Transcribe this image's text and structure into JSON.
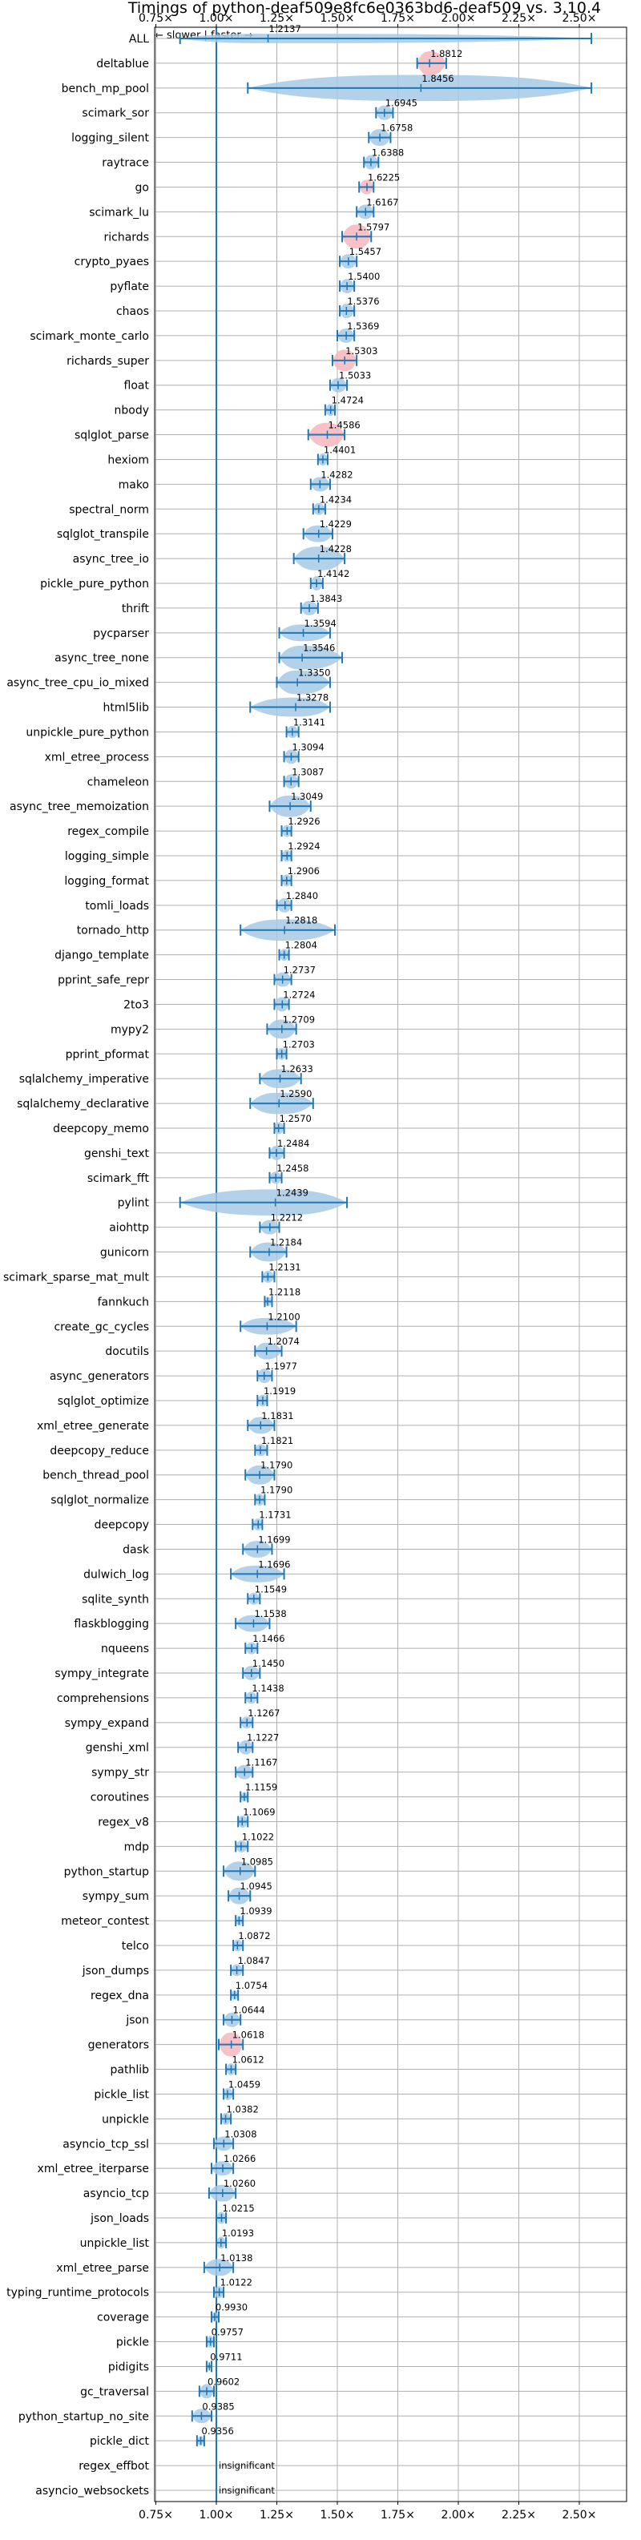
{
  "chart_data": {
    "type": "violin",
    "title": "Timings of python-deaf509e8fc6e0363bd6-deaf509 vs. 3.10.4",
    "direction_label": "← slower | faster →",
    "xlim": [
      0.75,
      2.6
    ],
    "xticks": [
      0.75,
      1.0,
      1.25,
      1.5,
      1.75,
      2.0,
      2.25,
      2.5
    ],
    "xtick_labels": [
      "0.75×",
      "1.00×",
      "1.25×",
      "1.50×",
      "1.75×",
      "2.00×",
      "2.25×",
      "2.50×"
    ],
    "reference_line": 1.0,
    "grid": true,
    "colors": {
      "normal": "#a7c9e6",
      "highlight": "#f4b6bd",
      "line": "#1f77b4"
    },
    "benchmarks": [
      {
        "name": "ALL",
        "value": 1.2137,
        "label": "1.2137",
        "lo": 0.85,
        "hi": 2.55,
        "w": 0.4,
        "highlight": false
      },
      {
        "name": "deltablue",
        "value": 1.8812,
        "label": "1.8812",
        "lo": 1.83,
        "hi": 1.95,
        "w": 1.0,
        "highlight": true
      },
      {
        "name": "bench_mp_pool",
        "value": 1.8456,
        "label": "1.8456",
        "lo": 1.13,
        "hi": 2.55,
        "w": 1.1,
        "highlight": false
      },
      {
        "name": "scimark_sor",
        "value": 1.6945,
        "label": "1.6945",
        "lo": 1.66,
        "hi": 1.73,
        "w": 0.6,
        "highlight": false
      },
      {
        "name": "logging_silent",
        "value": 1.6758,
        "label": "1.6758",
        "lo": 1.63,
        "hi": 1.72,
        "w": 0.7,
        "highlight": false
      },
      {
        "name": "raytrace",
        "value": 1.6388,
        "label": "1.6388",
        "lo": 1.61,
        "hi": 1.67,
        "w": 0.6,
        "highlight": false
      },
      {
        "name": "go",
        "value": 1.6225,
        "label": "1.6225",
        "lo": 1.59,
        "hi": 1.65,
        "w": 0.6,
        "highlight": true
      },
      {
        "name": "scimark_lu",
        "value": 1.6167,
        "label": "1.6167",
        "lo": 1.58,
        "hi": 1.65,
        "w": 0.6,
        "highlight": false
      },
      {
        "name": "richards",
        "value": 1.5797,
        "label": "1.5797",
        "lo": 1.52,
        "hi": 1.64,
        "w": 1.0,
        "highlight": true
      },
      {
        "name": "crypto_pyaes",
        "value": 1.5457,
        "label": "1.5457",
        "lo": 1.51,
        "hi": 1.58,
        "w": 0.6,
        "highlight": false
      },
      {
        "name": "pyflate",
        "value": 1.54,
        "label": "1.5400",
        "lo": 1.51,
        "hi": 1.57,
        "w": 0.6,
        "highlight": false
      },
      {
        "name": "chaos",
        "value": 1.5376,
        "label": "1.5376",
        "lo": 1.51,
        "hi": 1.57,
        "w": 0.6,
        "highlight": false
      },
      {
        "name": "scimark_monte_carlo",
        "value": 1.5369,
        "label": "1.5369",
        "lo": 1.5,
        "hi": 1.57,
        "w": 0.6,
        "highlight": false
      },
      {
        "name": "richards_super",
        "value": 1.5303,
        "label": "1.5303",
        "lo": 1.48,
        "hi": 1.58,
        "w": 0.9,
        "highlight": true
      },
      {
        "name": "float",
        "value": 1.5033,
        "label": "1.5033",
        "lo": 1.47,
        "hi": 1.54,
        "w": 0.6,
        "highlight": false
      },
      {
        "name": "nbody",
        "value": 1.4724,
        "label": "1.4724",
        "lo": 1.45,
        "hi": 1.49,
        "w": 0.5,
        "highlight": false
      },
      {
        "name": "sqlglot_parse",
        "value": 1.4586,
        "label": "1.4586",
        "lo": 1.38,
        "hi": 1.53,
        "w": 1.0,
        "highlight": true
      },
      {
        "name": "hexiom",
        "value": 1.4401,
        "label": "1.4401",
        "lo": 1.42,
        "hi": 1.46,
        "w": 0.5,
        "highlight": false
      },
      {
        "name": "mako",
        "value": 1.4282,
        "label": "1.4282",
        "lo": 1.39,
        "hi": 1.47,
        "w": 0.6,
        "highlight": false
      },
      {
        "name": "spectral_norm",
        "value": 1.4234,
        "label": "1.4234",
        "lo": 1.4,
        "hi": 1.45,
        "w": 0.5,
        "highlight": false
      },
      {
        "name": "sqlglot_transpile",
        "value": 1.4229,
        "label": "1.4229",
        "lo": 1.36,
        "hi": 1.48,
        "w": 0.7,
        "highlight": false
      },
      {
        "name": "async_tree_io",
        "value": 1.4228,
        "label": "1.4228",
        "lo": 1.32,
        "hi": 1.53,
        "w": 1.0,
        "highlight": false
      },
      {
        "name": "pickle_pure_python",
        "value": 1.4142,
        "label": "1.4142",
        "lo": 1.39,
        "hi": 1.44,
        "w": 0.6,
        "highlight": false
      },
      {
        "name": "thrift",
        "value": 1.3843,
        "label": "1.3843",
        "lo": 1.35,
        "hi": 1.42,
        "w": 0.6,
        "highlight": false
      },
      {
        "name": "pycparser",
        "value": 1.3594,
        "label": "1.3594",
        "lo": 1.26,
        "hi": 1.47,
        "w": 0.7,
        "highlight": false
      },
      {
        "name": "async_tree_none",
        "value": 1.3546,
        "label": "1.3546",
        "lo": 1.26,
        "hi": 1.52,
        "w": 1.0,
        "highlight": false
      },
      {
        "name": "async_tree_cpu_io_mixed",
        "value": 1.335,
        "label": "1.3350",
        "lo": 1.25,
        "hi": 1.47,
        "w": 1.0,
        "highlight": false
      },
      {
        "name": "html5lib",
        "value": 1.3278,
        "label": "1.3278",
        "lo": 1.14,
        "hi": 1.47,
        "w": 0.8,
        "highlight": false
      },
      {
        "name": "unpickle_pure_python",
        "value": 1.3141,
        "label": "1.3141",
        "lo": 1.29,
        "hi": 1.34,
        "w": 0.5,
        "highlight": false
      },
      {
        "name": "xml_etree_process",
        "value": 1.3094,
        "label": "1.3094",
        "lo": 1.28,
        "hi": 1.34,
        "w": 0.6,
        "highlight": false
      },
      {
        "name": "chameleon",
        "value": 1.3087,
        "label": "1.3087",
        "lo": 1.28,
        "hi": 1.34,
        "w": 0.6,
        "highlight": false
      },
      {
        "name": "async_tree_memoization",
        "value": 1.3049,
        "label": "1.3049",
        "lo": 1.22,
        "hi": 1.39,
        "w": 0.9,
        "highlight": false
      },
      {
        "name": "regex_compile",
        "value": 1.2926,
        "label": "1.2926",
        "lo": 1.27,
        "hi": 1.31,
        "w": 0.5,
        "highlight": false
      },
      {
        "name": "logging_simple",
        "value": 1.2924,
        "label": "1.2924",
        "lo": 1.27,
        "hi": 1.31,
        "w": 0.5,
        "highlight": false
      },
      {
        "name": "logging_format",
        "value": 1.2906,
        "label": "1.2906",
        "lo": 1.27,
        "hi": 1.31,
        "w": 0.5,
        "highlight": false
      },
      {
        "name": "tomli_loads",
        "value": 1.284,
        "label": "1.2840",
        "lo": 1.25,
        "hi": 1.31,
        "w": 0.6,
        "highlight": false
      },
      {
        "name": "tornado_http",
        "value": 1.2818,
        "label": "1.2818",
        "lo": 1.1,
        "hi": 1.49,
        "w": 0.9,
        "highlight": false
      },
      {
        "name": "django_template",
        "value": 1.2804,
        "label": "1.2804",
        "lo": 1.26,
        "hi": 1.3,
        "w": 0.5,
        "highlight": false
      },
      {
        "name": "pprint_safe_repr",
        "value": 1.2737,
        "label": "1.2737",
        "lo": 1.24,
        "hi": 1.31,
        "w": 0.6,
        "highlight": false
      },
      {
        "name": "2to3",
        "value": 1.2724,
        "label": "1.2724",
        "lo": 1.24,
        "hi": 1.3,
        "w": 0.6,
        "highlight": false
      },
      {
        "name": "mypy2",
        "value": 1.2709,
        "label": "1.2709",
        "lo": 1.21,
        "hi": 1.33,
        "w": 0.8,
        "highlight": false
      },
      {
        "name": "pprint_pformat",
        "value": 1.2703,
        "label": "1.2703",
        "lo": 1.25,
        "hi": 1.29,
        "w": 0.5,
        "highlight": false
      },
      {
        "name": "sqlalchemy_imperative",
        "value": 1.2633,
        "label": "1.2633",
        "lo": 1.18,
        "hi": 1.35,
        "w": 0.8,
        "highlight": false
      },
      {
        "name": "sqlalchemy_declarative",
        "value": 1.259,
        "label": "1.2590",
        "lo": 1.14,
        "hi": 1.4,
        "w": 0.9,
        "highlight": false
      },
      {
        "name": "deepcopy_memo",
        "value": 1.257,
        "label": "1.2570",
        "lo": 1.24,
        "hi": 1.28,
        "w": 0.5,
        "highlight": false
      },
      {
        "name": "genshi_text",
        "value": 1.2484,
        "label": "1.2484",
        "lo": 1.22,
        "hi": 1.28,
        "w": 0.6,
        "highlight": false
      },
      {
        "name": "scimark_fft",
        "value": 1.2458,
        "label": "1.2458",
        "lo": 1.22,
        "hi": 1.27,
        "w": 0.5,
        "highlight": false
      },
      {
        "name": "pylint",
        "value": 1.2439,
        "label": "1.2439",
        "lo": 0.85,
        "hi": 1.54,
        "w": 1.1,
        "highlight": false
      },
      {
        "name": "aiohttp",
        "value": 1.2212,
        "label": "1.2212",
        "lo": 1.18,
        "hi": 1.26,
        "w": 0.6,
        "highlight": false
      },
      {
        "name": "gunicorn",
        "value": 1.2184,
        "label": "1.2184",
        "lo": 1.14,
        "hi": 1.29,
        "w": 0.8,
        "highlight": false
      },
      {
        "name": "scimark_sparse_mat_mult",
        "value": 1.2131,
        "label": "1.2131",
        "lo": 1.19,
        "hi": 1.24,
        "w": 0.5,
        "highlight": false
      },
      {
        "name": "fannkuch",
        "value": 1.2118,
        "label": "1.2118",
        "lo": 1.2,
        "hi": 1.23,
        "w": 0.4,
        "highlight": false
      },
      {
        "name": "create_gc_cycles",
        "value": 1.21,
        "label": "1.2100",
        "lo": 1.1,
        "hi": 1.33,
        "w": 0.7,
        "highlight": false
      },
      {
        "name": "docutils",
        "value": 1.2074,
        "label": "1.2074",
        "lo": 1.16,
        "hi": 1.27,
        "w": 0.7,
        "highlight": false
      },
      {
        "name": "async_generators",
        "value": 1.1977,
        "label": "1.1977",
        "lo": 1.17,
        "hi": 1.23,
        "w": 0.6,
        "highlight": false
      },
      {
        "name": "sqlglot_optimize",
        "value": 1.1919,
        "label": "1.1919",
        "lo": 1.17,
        "hi": 1.21,
        "w": 0.5,
        "highlight": false
      },
      {
        "name": "xml_etree_generate",
        "value": 1.1831,
        "label": "1.1831",
        "lo": 1.13,
        "hi": 1.24,
        "w": 0.7,
        "highlight": false
      },
      {
        "name": "deepcopy_reduce",
        "value": 1.1821,
        "label": "1.1821",
        "lo": 1.16,
        "hi": 1.21,
        "w": 0.5,
        "highlight": false
      },
      {
        "name": "bench_thread_pool",
        "value": 1.179,
        "label": "1.1790",
        "lo": 1.12,
        "hi": 1.24,
        "w": 0.8,
        "highlight": false
      },
      {
        "name": "sqlglot_normalize",
        "value": 1.179,
        "label": "1.1790",
        "lo": 1.16,
        "hi": 1.2,
        "w": 0.5,
        "highlight": false
      },
      {
        "name": "deepcopy",
        "value": 1.1731,
        "label": "1.1731",
        "lo": 1.15,
        "hi": 1.19,
        "w": 0.5,
        "highlight": false
      },
      {
        "name": "dask",
        "value": 1.1699,
        "label": "1.1699",
        "lo": 1.11,
        "hi": 1.23,
        "w": 0.7,
        "highlight": false
      },
      {
        "name": "dulwich_log",
        "value": 1.1696,
        "label": "1.1696",
        "lo": 1.06,
        "hi": 1.28,
        "w": 0.7,
        "highlight": false
      },
      {
        "name": "sqlite_synth",
        "value": 1.1549,
        "label": "1.1549",
        "lo": 1.13,
        "hi": 1.18,
        "w": 0.5,
        "highlight": false
      },
      {
        "name": "flaskblogging",
        "value": 1.1538,
        "label": "1.1538",
        "lo": 1.08,
        "hi": 1.22,
        "w": 0.7,
        "highlight": false
      },
      {
        "name": "nqueens",
        "value": 1.1466,
        "label": "1.1466",
        "lo": 1.12,
        "hi": 1.17,
        "w": 0.5,
        "highlight": false
      },
      {
        "name": "sympy_integrate",
        "value": 1.145,
        "label": "1.1450",
        "lo": 1.11,
        "hi": 1.18,
        "w": 0.6,
        "highlight": false
      },
      {
        "name": "comprehensions",
        "value": 1.1438,
        "label": "1.1438",
        "lo": 1.12,
        "hi": 1.17,
        "w": 0.5,
        "highlight": false
      },
      {
        "name": "sympy_expand",
        "value": 1.1267,
        "label": "1.1267",
        "lo": 1.1,
        "hi": 1.15,
        "w": 0.5,
        "highlight": false
      },
      {
        "name": "genshi_xml",
        "value": 1.1227,
        "label": "1.1227",
        "lo": 1.09,
        "hi": 1.15,
        "w": 0.6,
        "highlight": false
      },
      {
        "name": "sympy_str",
        "value": 1.1167,
        "label": "1.1167",
        "lo": 1.08,
        "hi": 1.15,
        "w": 0.6,
        "highlight": false
      },
      {
        "name": "coroutines",
        "value": 1.1159,
        "label": "1.1159",
        "lo": 1.1,
        "hi": 1.13,
        "w": 0.4,
        "highlight": false
      },
      {
        "name": "regex_v8",
        "value": 1.1069,
        "label": "1.1069",
        "lo": 1.09,
        "hi": 1.13,
        "w": 0.5,
        "highlight": false
      },
      {
        "name": "mdp",
        "value": 1.1022,
        "label": "1.1022",
        "lo": 1.08,
        "hi": 1.13,
        "w": 0.5,
        "highlight": false
      },
      {
        "name": "python_startup",
        "value": 1.0985,
        "label": "1.0985",
        "lo": 1.03,
        "hi": 1.16,
        "w": 0.8,
        "highlight": false
      },
      {
        "name": "sympy_sum",
        "value": 1.0945,
        "label": "1.0945",
        "lo": 1.05,
        "hi": 1.14,
        "w": 0.7,
        "highlight": false
      },
      {
        "name": "meteor_contest",
        "value": 1.0939,
        "label": "1.0939",
        "lo": 1.08,
        "hi": 1.11,
        "w": 0.4,
        "highlight": false
      },
      {
        "name": "telco",
        "value": 1.0872,
        "label": "1.0872",
        "lo": 1.07,
        "hi": 1.11,
        "w": 0.5,
        "highlight": false
      },
      {
        "name": "json_dumps",
        "value": 1.0847,
        "label": "1.0847",
        "lo": 1.06,
        "hi": 1.11,
        "w": 0.5,
        "highlight": false
      },
      {
        "name": "regex_dna",
        "value": 1.0754,
        "label": "1.0754",
        "lo": 1.06,
        "hi": 1.09,
        "w": 0.4,
        "highlight": false
      },
      {
        "name": "json",
        "value": 1.0644,
        "label": "1.0644",
        "lo": 1.03,
        "hi": 1.1,
        "w": 0.6,
        "highlight": false
      },
      {
        "name": "generators",
        "value": 1.0618,
        "label": "1.0618",
        "lo": 1.01,
        "hi": 1.11,
        "w": 1.0,
        "highlight": true
      },
      {
        "name": "pathlib",
        "value": 1.0612,
        "label": "1.0612",
        "lo": 1.04,
        "hi": 1.08,
        "w": 0.5,
        "highlight": false
      },
      {
        "name": "pickle_list",
        "value": 1.0459,
        "label": "1.0459",
        "lo": 1.03,
        "hi": 1.07,
        "w": 0.5,
        "highlight": false
      },
      {
        "name": "unpickle",
        "value": 1.0382,
        "label": "1.0382",
        "lo": 1.02,
        "hi": 1.06,
        "w": 0.5,
        "highlight": false
      },
      {
        "name": "asyncio_tcp_ssl",
        "value": 1.0308,
        "label": "1.0308",
        "lo": 0.99,
        "hi": 1.07,
        "w": 0.6,
        "highlight": false
      },
      {
        "name": "xml_etree_iterparse",
        "value": 1.0266,
        "label": "1.0266",
        "lo": 0.98,
        "hi": 1.07,
        "w": 0.6,
        "highlight": false
      },
      {
        "name": "asyncio_tcp",
        "value": 1.026,
        "label": "1.0260",
        "lo": 0.97,
        "hi": 1.08,
        "w": 0.7,
        "highlight": false
      },
      {
        "name": "json_loads",
        "value": 1.0215,
        "label": "1.0215",
        "lo": 1.0,
        "hi": 1.04,
        "w": 0.5,
        "highlight": false
      },
      {
        "name": "unpickle_list",
        "value": 1.0193,
        "label": "1.0193",
        "lo": 1.0,
        "hi": 1.04,
        "w": 0.5,
        "highlight": false
      },
      {
        "name": "xml_etree_parse",
        "value": 1.0138,
        "label": "1.0138",
        "lo": 0.95,
        "hi": 1.07,
        "w": 0.7,
        "highlight": false
      },
      {
        "name": "typing_runtime_protocols",
        "value": 1.0122,
        "label": "1.0122",
        "lo": 0.99,
        "hi": 1.03,
        "w": 0.5,
        "highlight": false
      },
      {
        "name": "coverage",
        "value": 0.993,
        "label": "0.9930",
        "lo": 0.98,
        "hi": 1.01,
        "w": 0.4,
        "highlight": false
      },
      {
        "name": "pickle",
        "value": 0.9757,
        "label": "0.9757",
        "lo": 0.96,
        "hi": 0.99,
        "w": 0.5,
        "highlight": false
      },
      {
        "name": "pidigits",
        "value": 0.9711,
        "label": "0.9711",
        "lo": 0.96,
        "hi": 0.98,
        "w": 0.2,
        "highlight": false
      },
      {
        "name": "gc_traversal",
        "value": 0.9602,
        "label": "0.9602",
        "lo": 0.93,
        "hi": 0.99,
        "w": 0.6,
        "highlight": false
      },
      {
        "name": "python_startup_no_site",
        "value": 0.9385,
        "label": "0.9385",
        "lo": 0.9,
        "hi": 0.98,
        "w": 0.6,
        "highlight": false
      },
      {
        "name": "pickle_dict",
        "value": 0.9356,
        "label": "0.9356",
        "lo": 0.92,
        "hi": 0.95,
        "w": 0.4,
        "highlight": false
      },
      {
        "name": "regex_effbot",
        "value": null,
        "label": "insignificant",
        "highlight": false
      },
      {
        "name": "asyncio_websockets",
        "value": null,
        "label": "insignificant",
        "highlight": false
      }
    ]
  }
}
